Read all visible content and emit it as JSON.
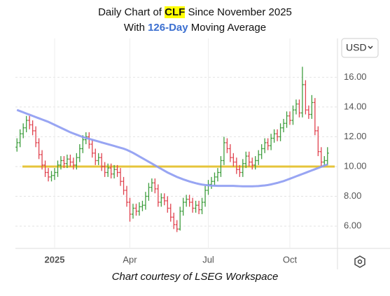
{
  "chart_data": {
    "type": "ohlc",
    "title": [
      "Daily Chart of ",
      "CLF",
      " Since November 2025"
    ],
    "subtitle": [
      "With ",
      "126-Day",
      " Moving Average"
    ],
    "caption": "Chart courtesy of LSEG Workspace",
    "currency": "USD",
    "categories": [
      null,
      null,
      null,
      null,
      null,
      null,
      null,
      null,
      null,
      null,
      null,
      null,
      "2025",
      null,
      null,
      null,
      null,
      null,
      null,
      null,
      null,
      null,
      null,
      null,
      null,
      null,
      null,
      null,
      null,
      null,
      null,
      null,
      null,
      null,
      null,
      null,
      "Apr",
      null,
      null,
      null,
      null,
      null,
      null,
      null,
      null,
      null,
      null,
      null,
      null,
      null,
      null,
      null,
      null,
      null,
      null,
      null,
      null,
      null,
      null,
      null,
      null,
      "Jul",
      null,
      null,
      null,
      null,
      null,
      null,
      null,
      null,
      null,
      null,
      null,
      null,
      null,
      null,
      null,
      null,
      null,
      null,
      null,
      null,
      null,
      null,
      null,
      null,
      null,
      "Oct",
      null,
      null,
      null,
      null,
      null,
      null,
      null,
      null,
      null,
      null,
      null,
      null
    ],
    "open": [
      11.3,
      11.6,
      12.2,
      12.6,
      13.1,
      12.8,
      12.4,
      11.6,
      10.8,
      10.1,
      9.6,
      9.3,
      9.4,
      9.6,
      10.1,
      10.4,
      10.2,
      10.5,
      10.3,
      10.1,
      10.6,
      11.2,
      11.8,
      12.0,
      11.5,
      10.9,
      10.4,
      10.6,
      10.0,
      9.6,
      9.9,
      9.5,
      9.8,
      9.6,
      9.0,
      8.4,
      7.6,
      6.8,
      7.2,
      7.0,
      7.3,
      7.4,
      8.0,
      8.6,
      8.9,
      8.5,
      7.6,
      7.9,
      7.7,
      7.2,
      6.6,
      6.1,
      5.8,
      7.0,
      7.6,
      7.8,
      7.6,
      7.2,
      7.4,
      7.1,
      7.6,
      8.4,
      8.8,
      9.0,
      9.3,
      9.6,
      10.4,
      11.6,
      11.2,
      10.6,
      10.3,
      9.8,
      9.6,
      10.2,
      10.7,
      10.3,
      10.1,
      10.4,
      10.8,
      11.2,
      11.6,
      11.4,
      11.9,
      12.2,
      12.0,
      12.6,
      12.9,
      13.4,
      13.1,
      13.8,
      14.2,
      13.6,
      15.5,
      13.8,
      13.5,
      14.3,
      12.4,
      11.0,
      10.3,
      10.4
    ],
    "high": [
      11.9,
      12.5,
      12.9,
      13.4,
      13.4,
      13.1,
      12.7,
      11.9,
      11.1,
      10.4,
      9.9,
      9.7,
      9.9,
      10.4,
      10.7,
      10.7,
      10.8,
      10.8,
      10.6,
      10.9,
      11.5,
      12.1,
      12.3,
      12.3,
      11.8,
      11.2,
      10.9,
      10.9,
      10.3,
      10.2,
      10.2,
      10.1,
      10.1,
      9.9,
      9.3,
      8.7,
      7.9,
      7.5,
      7.5,
      7.6,
      7.7,
      8.3,
      8.9,
      9.2,
      9.2,
      8.8,
      8.2,
      8.2,
      8.0,
      7.5,
      6.9,
      6.4,
      7.3,
      7.9,
      8.1,
      8.1,
      7.9,
      7.7,
      7.7,
      7.9,
      8.7,
      9.1,
      9.3,
      9.6,
      9.9,
      10.7,
      12.0,
      11.9,
      11.5,
      10.9,
      10.6,
      10.1,
      10.5,
      11.0,
      11.0,
      10.6,
      10.7,
      11.1,
      11.5,
      11.9,
      11.9,
      12.2,
      12.5,
      12.5,
      12.9,
      13.2,
      13.7,
      13.7,
      14.1,
      14.5,
      14.5,
      16.7,
      15.8,
      14.1,
      14.8,
      14.6,
      12.7,
      11.3,
      10.7,
      11.3
    ],
    "low": [
      11.0,
      11.3,
      11.9,
      12.3,
      12.5,
      12.1,
      11.3,
      10.5,
      9.8,
      9.3,
      9.0,
      9.0,
      9.1,
      9.3,
      9.8,
      9.9,
      9.9,
      10.0,
      9.8,
      9.8,
      10.3,
      10.9,
      11.5,
      11.2,
      10.6,
      10.1,
      10.1,
      9.7,
      9.3,
      9.3,
      9.2,
      9.2,
      9.3,
      8.7,
      8.1,
      7.3,
      6.3,
      6.5,
      6.7,
      6.7,
      7.0,
      7.1,
      7.7,
      8.3,
      8.2,
      7.3,
      7.3,
      7.4,
      6.9,
      6.3,
      5.8,
      5.6,
      5.7,
      6.7,
      7.3,
      7.3,
      6.9,
      6.9,
      6.8,
      6.8,
      7.3,
      8.1,
      8.5,
      8.7,
      9.0,
      9.3,
      10.1,
      10.9,
      10.3,
      10.0,
      9.5,
      9.3,
      9.3,
      9.9,
      10.0,
      9.8,
      9.8,
      10.1,
      10.5,
      10.9,
      11.1,
      11.1,
      11.6,
      11.7,
      11.7,
      12.3,
      12.6,
      12.8,
      12.8,
      13.5,
      13.3,
      13.3,
      13.5,
      13.2,
      13.2,
      12.1,
      10.7,
      10.0,
      10.0,
      10.1
    ],
    "close": [
      11.6,
      12.2,
      12.6,
      13.1,
      12.8,
      12.4,
      11.6,
      10.8,
      10.1,
      9.6,
      9.3,
      9.4,
      9.6,
      10.1,
      10.4,
      10.2,
      10.5,
      10.3,
      10.1,
      10.6,
      11.2,
      11.8,
      12.0,
      11.5,
      10.9,
      10.4,
      10.6,
      10.0,
      9.6,
      9.9,
      9.5,
      9.8,
      9.6,
      9.0,
      8.4,
      7.6,
      6.8,
      7.2,
      7.0,
      7.3,
      7.4,
      8.0,
      8.6,
      8.9,
      8.5,
      7.6,
      7.9,
      7.7,
      7.2,
      6.6,
      6.1,
      5.8,
      7.0,
      7.6,
      7.8,
      7.6,
      7.2,
      7.4,
      7.1,
      7.6,
      8.4,
      8.8,
      9.0,
      9.3,
      9.6,
      10.4,
      11.6,
      11.2,
      10.6,
      10.3,
      9.8,
      9.6,
      10.2,
      10.7,
      10.3,
      10.1,
      10.4,
      10.8,
      11.2,
      11.6,
      11.4,
      11.9,
      12.2,
      12.0,
      12.6,
      12.9,
      13.4,
      13.1,
      13.8,
      14.2,
      13.6,
      15.5,
      13.8,
      13.5,
      14.3,
      12.4,
      11.0,
      10.3,
      10.4,
      10.9
    ],
    "up_color": "#3f9e3f",
    "down_color": "#e0434f",
    "moving_average": {
      "color": "#8d9bf2",
      "values": [
        13.8,
        13.72,
        13.64,
        13.56,
        13.48,
        13.4,
        13.32,
        13.24,
        13.16,
        13.08,
        13.0,
        12.9,
        12.8,
        12.7,
        12.6,
        12.5,
        12.4,
        12.3,
        12.22,
        12.14,
        12.06,
        11.98,
        11.92,
        11.86,
        11.8,
        11.74,
        11.68,
        11.62,
        11.56,
        11.5,
        11.44,
        11.38,
        11.32,
        11.26,
        11.2,
        11.12,
        11.02,
        10.92,
        10.8,
        10.68,
        10.56,
        10.44,
        10.32,
        10.2,
        10.08,
        9.96,
        9.84,
        9.72,
        9.6,
        9.5,
        9.4,
        9.3,
        9.22,
        9.14,
        9.07,
        9.0,
        8.94,
        8.88,
        8.83,
        8.79,
        8.76,
        8.74,
        8.72,
        8.71,
        8.7,
        8.7,
        8.7,
        8.7,
        8.7,
        8.7,
        8.69,
        8.68,
        8.67,
        8.67,
        8.67,
        8.67,
        8.68,
        8.69,
        8.71,
        8.73,
        8.76,
        8.8,
        8.85,
        8.9,
        8.96,
        9.02,
        9.1,
        9.18,
        9.26,
        9.34,
        9.42,
        9.5,
        9.58,
        9.66,
        9.74,
        9.82,
        9.9,
        9.98,
        10.06,
        10.14
      ]
    },
    "hline": {
      "value": 10,
      "color": "#e6c43a"
    },
    "ylim": [
      4.5,
      18.6
    ],
    "yticks": [
      {
        "value": 6,
        "label": "6.00"
      },
      {
        "value": 8,
        "label": "8.00"
      },
      {
        "value": 10,
        "label": "10.00"
      },
      {
        "value": 12,
        "label": "12.00"
      },
      {
        "value": 14,
        "label": "14.00"
      },
      {
        "value": 16,
        "label": "16.00"
      }
    ],
    "grid": true
  }
}
